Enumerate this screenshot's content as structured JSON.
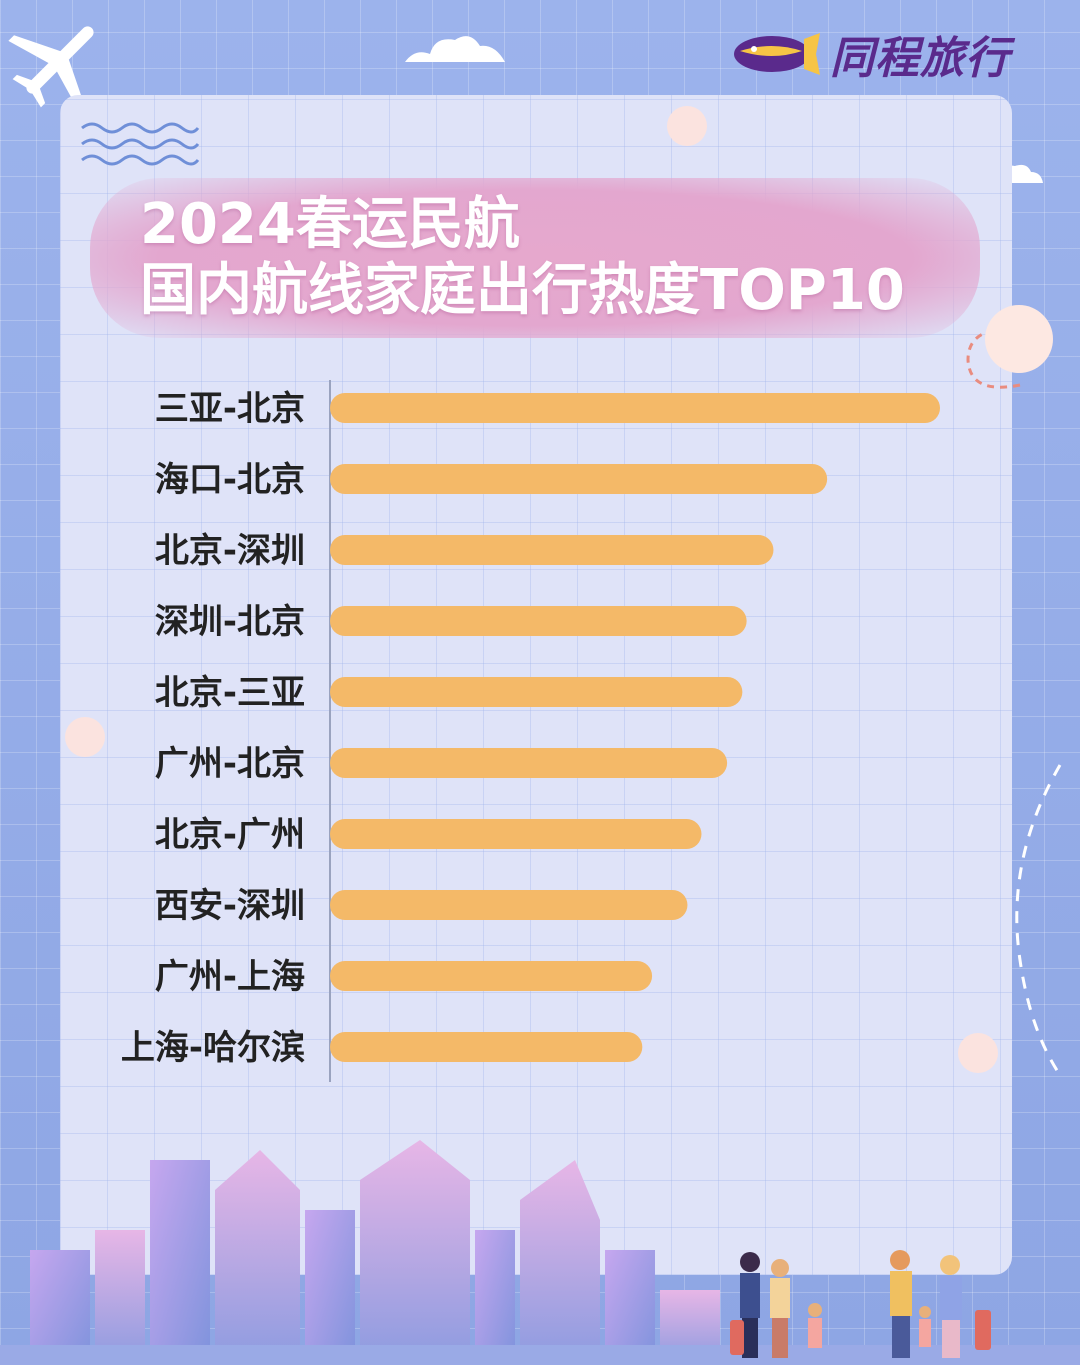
{
  "brand": {
    "name": "同程旅行",
    "color": "#5a2a8c"
  },
  "title": {
    "line1": "2024春运民航",
    "line2": "国内航线家庭出行热度TOP10"
  },
  "colors": {
    "bar": "#f4b968",
    "background": "#8fa7e6",
    "panel": "#dfe3f8",
    "banner": "#e6a8cd"
  },
  "chart_data": {
    "type": "bar",
    "orientation": "horizontal",
    "title": "2024春运民航 国内航线家庭出行热度TOP10",
    "categories": [
      "三亚-北京",
      "海口-北京",
      "北京-深圳",
      "深圳-北京",
      "北京-三亚",
      "广州-北京",
      "北京-广州",
      "西安-深圳",
      "广州-上海",
      "上海-哈尔滨"
    ],
    "values": [
      100,
      81.5,
      72.7,
      68.3,
      67.6,
      65.1,
      60.9,
      58.6,
      52.8,
      51.2
    ],
    "xlim": [
      0,
      100
    ],
    "grid": true,
    "legend": "none",
    "xlabel": "",
    "ylabel": ""
  }
}
